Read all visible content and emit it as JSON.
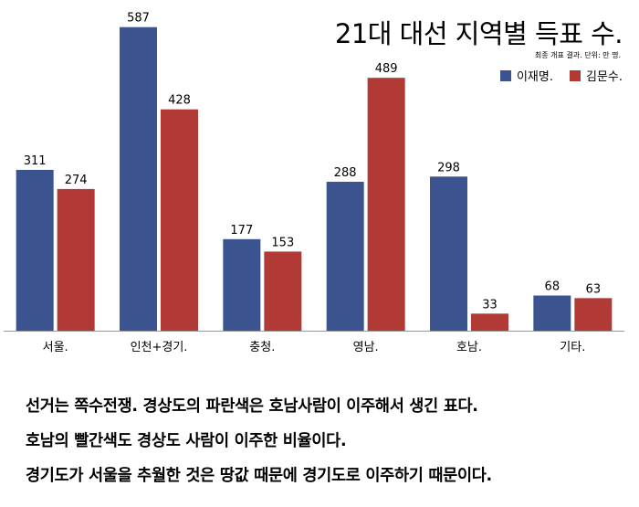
{
  "chart_data": {
    "type": "bar",
    "title": "21대 대선 지역별 득표 수.",
    "subtitle": "최종 개표 결과. 단위: 만 명.",
    "categories": [
      "서울.",
      "인천+경기.",
      "충청.",
      "영남.",
      "호남.",
      "기타."
    ],
    "series": [
      {
        "name": "이재명.",
        "color": "#3b5490",
        "values": [
          311,
          587,
          177,
          288,
          298,
          68
        ]
      },
      {
        "name": "김문수.",
        "color": "#b23a36",
        "values": [
          274,
          428,
          153,
          489,
          33,
          63
        ]
      }
    ],
    "ylim": [
      0,
      590
    ],
    "legend": "top-right",
    "grid": false
  },
  "captions": [
    "선거는 쪽수전쟁. 경상도의 파란색은 호남사람이 이주해서 생긴 표다.",
    "호남의 빨간색도 경상도 사람이 이주한 비율이다.",
    "경기도가 서울을 추월한 것은 땅값 때문에 경기도로 이주하기 때문이다."
  ]
}
